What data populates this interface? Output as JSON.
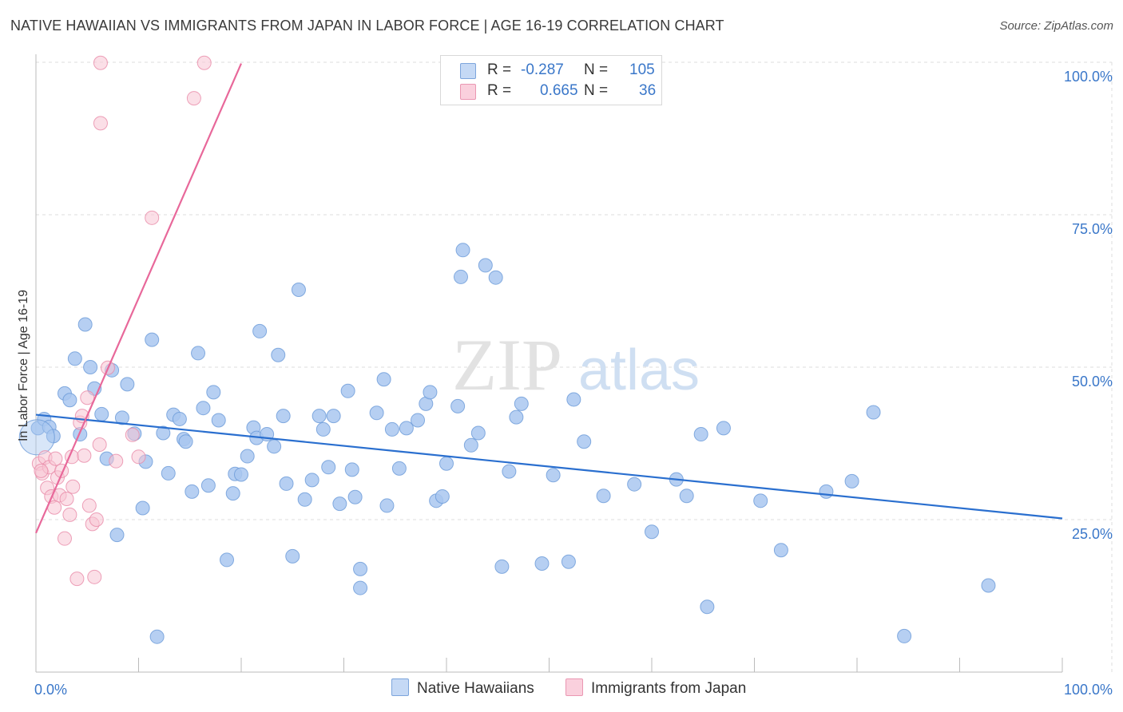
{
  "title": "NATIVE HAWAIIAN VS IMMIGRANTS FROM JAPAN IN LABOR FORCE | AGE 16-19 CORRELATION CHART",
  "source": "Source: ZipAtlas.com",
  "watermark": {
    "zip": "ZIP",
    "atlas": "atlas"
  },
  "colors": {
    "blue_fill": "#a9c7f0",
    "blue_stroke": "#6a9ad8",
    "blue_line": "#2a6fcf",
    "pink_fill": "#f8c4d4",
    "pink_stroke": "#e98aa8",
    "pink_line": "#e8689a",
    "axis_label": "#3a77c9",
    "grid": "#dddddd"
  },
  "legend": {
    "rows": [
      {
        "r_label": "R =",
        "r_value": "-0.287",
        "n_label": "N =",
        "n_value": "105"
      },
      {
        "r_label": "R =",
        "r_value": "0.665",
        "n_label": "N =",
        "n_value": "36"
      }
    ],
    "bottom": [
      "Native Hawaiians",
      "Immigrants from Japan"
    ]
  },
  "chart_data": {
    "type": "scatter",
    "ylabel": "In Labor Force | Age 16-19",
    "x_tick_labels": [
      "0.0%",
      "100.0%"
    ],
    "y_tick_labels": [
      "100.0%",
      "75.0%",
      "50.0%",
      "25.0%"
    ],
    "xlim": [
      0,
      100
    ],
    "ylim": [
      0,
      100
    ],
    "series": [
      {
        "name": "Native Hawaiians",
        "color": "#a9c7f0",
        "trend": {
          "x": [
            0,
            100
          ],
          "y": [
            42.2,
            25.2
          ]
        },
        "points": [
          [
            0.2,
            40
          ],
          [
            0.8,
            41.5
          ],
          [
            1.3,
            40.2
          ],
          [
            1.7,
            38.7
          ],
          [
            2.8,
            45.7
          ],
          [
            3.3,
            44.6
          ],
          [
            3.8,
            51.4
          ],
          [
            4.3,
            39
          ],
          [
            4.8,
            57
          ],
          [
            5.3,
            50
          ],
          [
            5.7,
            46.5
          ],
          [
            6.4,
            42.3
          ],
          [
            6.9,
            35
          ],
          [
            7.4,
            49.5
          ],
          [
            7.9,
            22.5
          ],
          [
            8.4,
            41.7
          ],
          [
            8.9,
            47.2
          ],
          [
            9.6,
            39.1
          ],
          [
            10.4,
            26.9
          ],
          [
            10.7,
            34.5
          ],
          [
            11.3,
            54.5
          ],
          [
            11.8,
            5.8
          ],
          [
            12.4,
            39.2
          ],
          [
            12.9,
            32.6
          ],
          [
            13.4,
            42.2
          ],
          [
            14,
            41.5
          ],
          [
            14.4,
            38.2
          ],
          [
            14.6,
            37.8
          ],
          [
            15.2,
            29.6
          ],
          [
            15.8,
            52.3
          ],
          [
            16.3,
            43.3
          ],
          [
            16.8,
            30.6
          ],
          [
            17.3,
            45.9
          ],
          [
            17.8,
            41.3
          ],
          [
            18.6,
            18.4
          ],
          [
            19.2,
            29.3
          ],
          [
            19.4,
            32.5
          ],
          [
            20,
            32.4
          ],
          [
            20.6,
            35.4
          ],
          [
            21.2,
            40.1
          ],
          [
            21.5,
            38.4
          ],
          [
            21.8,
            55.9
          ],
          [
            22.5,
            39
          ],
          [
            23.2,
            37
          ],
          [
            23.6,
            52
          ],
          [
            24.1,
            42
          ],
          [
            24.4,
            30.9
          ],
          [
            25,
            19
          ],
          [
            25.6,
            62.7
          ],
          [
            26.2,
            28.3
          ],
          [
            26.9,
            31.5
          ],
          [
            27.6,
            42
          ],
          [
            28,
            39.8
          ],
          [
            28.5,
            33.6
          ],
          [
            29,
            42
          ],
          [
            29.6,
            27.6
          ],
          [
            30.4,
            46.1
          ],
          [
            30.8,
            33.2
          ],
          [
            31.1,
            28.7
          ],
          [
            31.6,
            16.9
          ],
          [
            31.6,
            13.8
          ],
          [
            33.2,
            42.5
          ],
          [
            33.9,
            48
          ],
          [
            34.2,
            27.3
          ],
          [
            34.7,
            39.8
          ],
          [
            35.4,
            33.4
          ],
          [
            36.1,
            40
          ],
          [
            37.2,
            41.3
          ],
          [
            38,
            44
          ],
          [
            38.4,
            45.9
          ],
          [
            39,
            28.1
          ],
          [
            39.6,
            28.8
          ],
          [
            40,
            34.2
          ],
          [
            41.1,
            43.6
          ],
          [
            41.4,
            64.8
          ],
          [
            41.6,
            69.2
          ],
          [
            42.4,
            37.2
          ],
          [
            43.1,
            39.2
          ],
          [
            43.8,
            66.7
          ],
          [
            44.8,
            64.7
          ],
          [
            45.4,
            17.3
          ],
          [
            46.1,
            32.9
          ],
          [
            46.8,
            41.8
          ],
          [
            47.3,
            44
          ],
          [
            49.3,
            17.8
          ],
          [
            50.4,
            32.3
          ],
          [
            51.9,
            18.1
          ],
          [
            52.4,
            44.7
          ],
          [
            53.4,
            37.8
          ],
          [
            55.3,
            28.9
          ],
          [
            58.3,
            30.8
          ],
          [
            60,
            23
          ],
          [
            62.4,
            31.6
          ],
          [
            63.4,
            28.9
          ],
          [
            64.8,
            39
          ],
          [
            65.4,
            10.7
          ],
          [
            67,
            40
          ],
          [
            70.6,
            28.1
          ],
          [
            72.6,
            20
          ],
          [
            77,
            29.6
          ],
          [
            79.5,
            31.3
          ],
          [
            81.6,
            42.6
          ],
          [
            84.6,
            5.9
          ],
          [
            92.8,
            14.2
          ],
          [
            0.1,
            38.5
          ]
        ]
      },
      {
        "name": "Immigrants from Japan",
        "color": "#f8c4d4",
        "trend": {
          "x": [
            0,
            20
          ],
          "y": [
            22.8,
            99.8
          ]
        },
        "points": [
          [
            0.3,
            34.2
          ],
          [
            0.6,
            32.6
          ],
          [
            0.9,
            35.2
          ],
          [
            1.1,
            30.2
          ],
          [
            1.3,
            33.6
          ],
          [
            1.5,
            28.8
          ],
          [
            1.8,
            27
          ],
          [
            2.1,
            31.9
          ],
          [
            2.3,
            29
          ],
          [
            2.5,
            33
          ],
          [
            2.8,
            21.9
          ],
          [
            3,
            28.4
          ],
          [
            3.3,
            25.8
          ],
          [
            3.5,
            35.3
          ],
          [
            3.6,
            30.4
          ],
          [
            4,
            15.3
          ],
          [
            4.3,
            40.9
          ],
          [
            4.5,
            42
          ],
          [
            4.7,
            35.5
          ],
          [
            5,
            45
          ],
          [
            5.2,
            27.3
          ],
          [
            5.5,
            24.3
          ],
          [
            5.7,
            15.6
          ],
          [
            5.9,
            25
          ],
          [
            6.2,
            37.3
          ],
          [
            7,
            49.9
          ],
          [
            7.8,
            34.6
          ],
          [
            9.4,
            38.9
          ],
          [
            10,
            35.3
          ],
          [
            11.3,
            74.5
          ],
          [
            6.3,
            90
          ],
          [
            6.3,
            99.9
          ],
          [
            15.4,
            94.1
          ],
          [
            16.4,
            99.9
          ],
          [
            0.5,
            33
          ],
          [
            1.9,
            35
          ]
        ]
      }
    ]
  }
}
